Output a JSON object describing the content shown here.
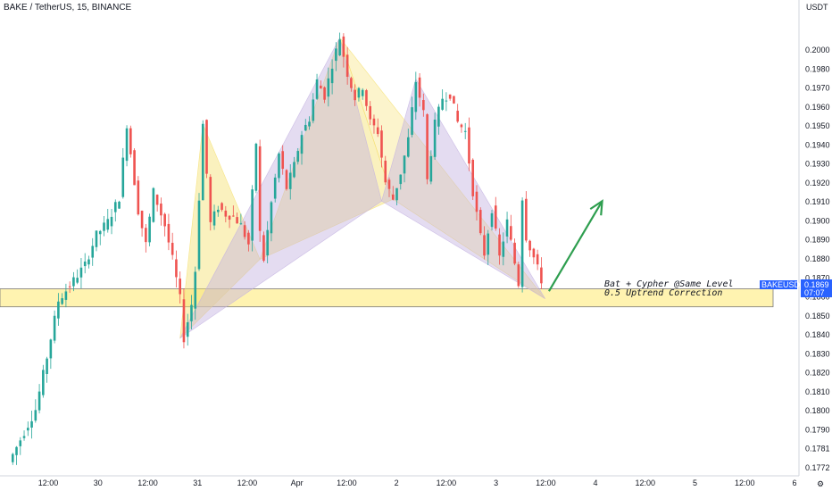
{
  "header": {
    "symbol_title": "BAKE / TetherUS, 15, BINANCE",
    "price_currency": "USDT"
  },
  "colors": {
    "up": "#26a69a",
    "down": "#ef5350",
    "pattern_yellow": "#f5e06e",
    "pattern_purple": "#c3b1e1",
    "support_zone": "#fff3b0",
    "arrow": "#2e9e4f",
    "price_tag": "#2962ff"
  },
  "chart_data": {
    "type": "candlestick",
    "title": "BAKE / TetherUS, 15, BINANCE",
    "ylabel": "USDT",
    "ylim": [
      0.17685,
      0.20105
    ],
    "y_ticks": [
      "0.2000",
      "0.1980",
      "0.1970",
      "0.1960",
      "0.1950",
      "0.1940",
      "0.1930",
      "0.1920",
      "0.1910",
      "0.1900",
      "0.1890",
      "0.1880",
      "0.1870",
      "0.1860",
      "0.1850",
      "0.1840",
      "0.1830",
      "0.1820",
      "0.1810",
      "0.1800",
      "0.1790",
      "0.1781",
      "0.1772"
    ],
    "x_ticks": [
      "12:00",
      "30",
      "12:00",
      "31",
      "12:00",
      "Apr",
      "12:00",
      "2",
      "12:00",
      "3",
      "12:00",
      "4",
      "12:00",
      "5",
      "12:00",
      "6"
    ],
    "price_path": [
      [
        0,
        0.1772
      ],
      [
        4,
        0.1788
      ],
      [
        7,
        0.18
      ],
      [
        10,
        0.1828
      ],
      [
        13,
        0.1858
      ],
      [
        16,
        0.1866
      ],
      [
        20,
        0.1877
      ],
      [
        23,
        0.1893
      ],
      [
        26,
        0.19
      ],
      [
        29,
        0.1913
      ],
      [
        31,
        0.1952
      ],
      [
        34,
        0.1906
      ],
      [
        36,
        0.1888
      ],
      [
        38,
        0.1916
      ],
      [
        41,
        0.1898
      ],
      [
        43,
        0.188
      ],
      [
        45,
        0.1859
      ],
      [
        46,
        0.1838
      ],
      [
        48,
        0.1856
      ],
      [
        49,
        0.1874
      ],
      [
        51,
        0.1952
      ],
      [
        53,
        0.1899
      ],
      [
        55,
        0.1908
      ],
      [
        57,
        0.1904
      ],
      [
        59,
        0.1903
      ],
      [
        61,
        0.1898
      ],
      [
        63,
        0.1888
      ],
      [
        65,
        0.1942
      ],
      [
        66,
        0.1894
      ],
      [
        67,
        0.188
      ],
      [
        69,
        0.191
      ],
      [
        71,
        0.1936
      ],
      [
        73,
        0.1918
      ],
      [
        75,
        0.193
      ],
      [
        77,
        0.1947
      ],
      [
        79,
        0.1955
      ],
      [
        81,
        0.1975
      ],
      [
        83,
        0.1967
      ],
      [
        85,
        0.1984
      ],
      [
        87,
        0.1998
      ],
      [
        89,
        0.1979
      ],
      [
        91,
        0.1966
      ],
      [
        93,
        0.1972
      ],
      [
        95,
        0.1953
      ],
      [
        97,
        0.1948
      ],
      [
        99,
        0.1921
      ],
      [
        101,
        0.1912
      ],
      [
        103,
        0.1926
      ],
      [
        105,
        0.1944
      ],
      [
        107,
        0.1975
      ],
      [
        109,
        0.1958
      ],
      [
        110,
        0.1922
      ],
      [
        112,
        0.1952
      ],
      [
        114,
        0.1966
      ],
      [
        116,
        0.1968
      ],
      [
        118,
        0.1953
      ],
      [
        120,
        0.1948
      ],
      [
        122,
        0.1916
      ],
      [
        124,
        0.1892
      ],
      [
        125,
        0.1883
      ],
      [
        127,
        0.1907
      ],
      [
        129,
        0.1881
      ],
      [
        131,
        0.19
      ],
      [
        133,
        0.1878
      ],
      [
        134,
        0.1867
      ],
      [
        135,
        0.1913
      ],
      [
        136,
        0.1892
      ],
      [
        138,
        0.1881
      ],
      [
        140,
        0.1869
      ]
    ],
    "patterns": [
      {
        "name": "Bat",
        "color": "pattern_yellow",
        "points": [
          [
            45,
            0.1838
          ],
          [
            51,
            0.1952
          ],
          [
            66,
            0.188
          ],
          [
            87,
            0.1998
          ],
          [
            101,
            0.1912
          ],
          [
            141,
            0.1859
          ]
        ]
      },
      {
        "name": "Cypher",
        "color": "pattern_purple",
        "points": [
          [
            45,
            0.1838
          ],
          [
            87,
            0.1998
          ],
          [
            98,
            0.1911
          ],
          [
            107,
            0.1976
          ],
          [
            141,
            0.1859
          ]
        ]
      }
    ],
    "support_zone": {
      "from": 0.18547,
      "to": 0.18643
    },
    "arrow": {
      "from": [
        142,
        0.1863
      ],
      "to": [
        156,
        0.1911
      ]
    },
    "annotation": [
      "Bat + Cypher @Same Level",
      "0.5 Uptrend Correction"
    ],
    "last_price": {
      "symbol": "BAKEUSDT",
      "price": "0.1869",
      "countdown": "07:07"
    }
  }
}
